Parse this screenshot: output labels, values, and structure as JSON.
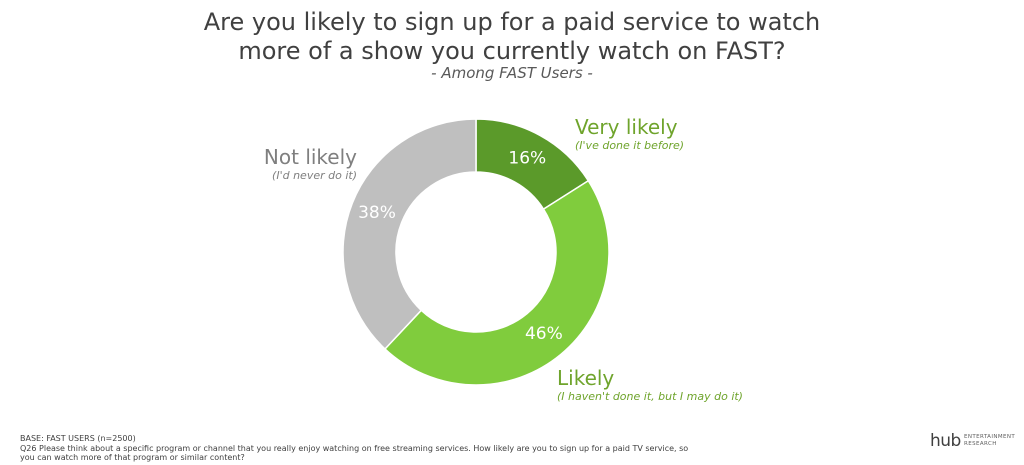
{
  "title": {
    "line1": "Are you likely to sign up for a paid service to watch",
    "line2": "more of a show you currently watch on FAST?"
  },
  "subtitle": "- Among FAST Users -",
  "chart_data": {
    "type": "pie",
    "donut": true,
    "categories": [
      "Very likely",
      "Likely",
      "Not likely"
    ],
    "values": [
      16,
      46,
      38
    ],
    "value_labels": [
      "16%",
      "46%",
      "38%"
    ],
    "notes": [
      "(I've done it before)",
      "(I haven't done it, but I may do it)",
      "(I'd never do it)"
    ],
    "colors": [
      "#5B9A2A",
      "#80CC3D",
      "#BFBFBF"
    ],
    "label_colors": [
      "#6FA42C",
      "#6FA42C",
      "#7F7F7F"
    ],
    "legend": "none"
  },
  "footer": {
    "base": "BASE: FAST USERS (n=2500)",
    "question_line1": "Q26 Please think about a specific program or channel that you really enjoy watching on free streaming services. How likely are you to sign up for a paid TV service, so",
    "question_line2": "you can watch more of that program or similar content?"
  },
  "logo": {
    "word": "hub",
    "line1": "ENTERTAINMENT",
    "line2": "RESEARCH"
  }
}
